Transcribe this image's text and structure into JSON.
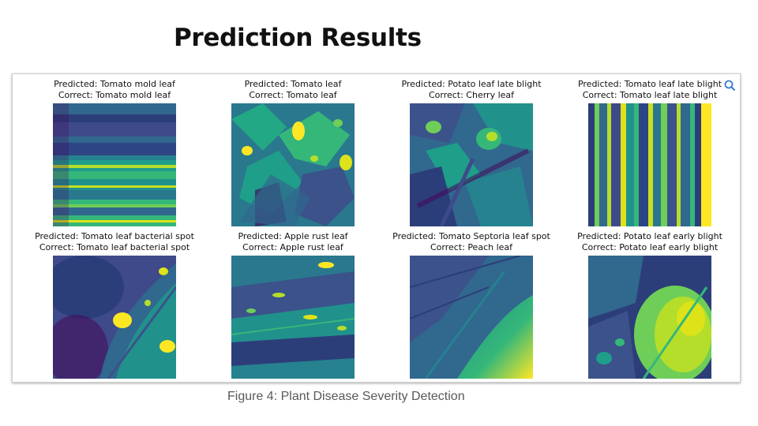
{
  "slide": {
    "title": "Prediction Results"
  },
  "figure": {
    "caption": "Figure 4: Plant Disease Severity Detection",
    "panels": [
      {
        "predicted": "Predicted: Tomato mold leaf",
        "correct": "Correct: Tomato mold leaf"
      },
      {
        "predicted": "Predicted: Tomato leaf",
        "correct": "Correct: Tomato leaf"
      },
      {
        "predicted": "Predicted: Potato leaf late blight",
        "correct": "Correct: Cherry leaf"
      },
      {
        "predicted": "Predicted: Tomato leaf late blight",
        "correct": "Correct: Tomato leaf late blight"
      },
      {
        "predicted": "Predicted: Tomato leaf bacterial spot",
        "correct": "Correct: Tomato leaf bacterial spot"
      },
      {
        "predicted": "Predicted: Apple rust leaf",
        "correct": "Correct: Apple rust leaf"
      },
      {
        "predicted": "Predicted: Tomato Septoria leaf spot",
        "correct": "Correct: Peach leaf"
      },
      {
        "predicted": "Predicted: Potato leaf early blight",
        "correct": "Correct: Potato leaf early blight"
      }
    ]
  },
  "colors": {
    "viridis_dark": "#440154",
    "viridis_blue": "#31688e",
    "viridis_teal": "#21918c",
    "viridis_green": "#35b779",
    "viridis_yellow": "#fde725"
  },
  "icons": {
    "overlay": "zoom-icon"
  }
}
